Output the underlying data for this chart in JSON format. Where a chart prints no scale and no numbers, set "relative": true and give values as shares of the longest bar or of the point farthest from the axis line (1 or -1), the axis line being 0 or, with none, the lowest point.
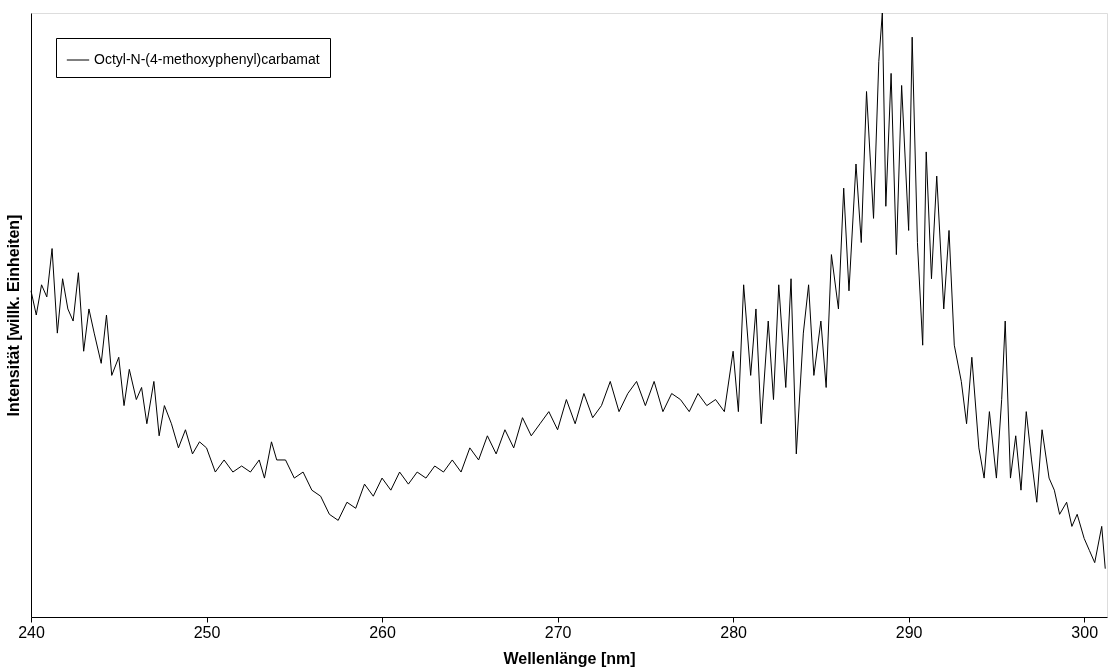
{
  "chart_data": {
    "type": "line",
    "xlabel": "Wellenlänge [nm]",
    "ylabel": "Intensität [willk. Einheiten]",
    "relative": true,
    "xlim": [
      240,
      301.3
    ],
    "xticks": [
      240,
      250,
      260,
      270,
      280,
      290,
      300
    ],
    "grid": false,
    "legend": "top left",
    "marker": "none",
    "line_style": "solid",
    "x": [
      240.0,
      240.3,
      240.6,
      240.9,
      241.2,
      241.5,
      241.8,
      242.1,
      242.4,
      242.7,
      243.0,
      243.3,
      243.6,
      244.0,
      244.3,
      244.6,
      245.0,
      245.3,
      245.6,
      246.0,
      246.3,
      246.6,
      247.0,
      247.3,
      247.6,
      248.0,
      248.4,
      248.8,
      249.2,
      249.6,
      250.0,
      250.5,
      251.0,
      251.5,
      252.0,
      252.5,
      253.0,
      253.3,
      253.7,
      254.0,
      254.5,
      255.0,
      255.5,
      256.0,
      256.5,
      257.0,
      257.5,
      258.0,
      258.5,
      259.0,
      259.5,
      260.0,
      260.5,
      261.0,
      261.5,
      262.0,
      262.5,
      263.0,
      263.5,
      264.0,
      264.5,
      265.0,
      265.5,
      266.0,
      266.5,
      267.0,
      267.5,
      268.0,
      268.5,
      269.0,
      269.5,
      270.0,
      270.5,
      271.0,
      271.5,
      272.0,
      272.5,
      273.0,
      273.5,
      274.0,
      274.5,
      275.0,
      275.5,
      276.0,
      276.5,
      277.0,
      277.5,
      278.0,
      278.5,
      279.0,
      279.5,
      280.0,
      280.3,
      280.6,
      281.0,
      281.3,
      281.6,
      282.0,
      282.3,
      282.6,
      283.0,
      283.3,
      283.6,
      284.0,
      284.3,
      284.6,
      285.0,
      285.3,
      285.6,
      286.0,
      286.3,
      286.6,
      287.0,
      287.3,
      287.6,
      288.0,
      288.3,
      288.5,
      288.7,
      289.0,
      289.3,
      289.6,
      290.0,
      290.2,
      290.5,
      290.8,
      291.0,
      291.3,
      291.6,
      292.0,
      292.3,
      292.6,
      293.0,
      293.3,
      293.6,
      294.0,
      294.3,
      294.6,
      295.0,
      295.3,
      295.5,
      295.8,
      296.1,
      296.4,
      296.7,
      297.0,
      297.3,
      297.6,
      298.0,
      298.3,
      298.6,
      299.0,
      299.3,
      299.6,
      300.0,
      300.3,
      300.6,
      301.0,
      301.2
    ],
    "series": [
      {
        "name": "Octyl-N-(4-methoxyphenyl)carbamat",
        "color": "#000000",
        "values": [
          0.54,
          0.5,
          0.55,
          0.53,
          0.61,
          0.47,
          0.56,
          0.51,
          0.49,
          0.57,
          0.44,
          0.51,
          0.47,
          0.42,
          0.5,
          0.4,
          0.43,
          0.35,
          0.41,
          0.36,
          0.38,
          0.32,
          0.39,
          0.3,
          0.35,
          0.32,
          0.28,
          0.31,
          0.27,
          0.29,
          0.28,
          0.24,
          0.26,
          0.24,
          0.25,
          0.24,
          0.26,
          0.23,
          0.29,
          0.26,
          0.26,
          0.23,
          0.24,
          0.21,
          0.2,
          0.17,
          0.16,
          0.19,
          0.18,
          0.22,
          0.2,
          0.23,
          0.21,
          0.24,
          0.22,
          0.24,
          0.23,
          0.25,
          0.24,
          0.26,
          0.24,
          0.28,
          0.26,
          0.3,
          0.27,
          0.31,
          0.28,
          0.33,
          0.3,
          0.32,
          0.34,
          0.31,
          0.36,
          0.32,
          0.37,
          0.33,
          0.35,
          0.39,
          0.34,
          0.37,
          0.39,
          0.35,
          0.39,
          0.34,
          0.37,
          0.36,
          0.34,
          0.37,
          0.35,
          0.36,
          0.34,
          0.44,
          0.34,
          0.55,
          0.4,
          0.51,
          0.32,
          0.49,
          0.36,
          0.55,
          0.38,
          0.56,
          0.27,
          0.47,
          0.55,
          0.4,
          0.49,
          0.38,
          0.6,
          0.51,
          0.71,
          0.54,
          0.75,
          0.62,
          0.87,
          0.66,
          0.92,
          1.0,
          0.68,
          0.9,
          0.6,
          0.88,
          0.64,
          0.96,
          0.62,
          0.45,
          0.77,
          0.56,
          0.73,
          0.51,
          0.64,
          0.45,
          0.39,
          0.32,
          0.43,
          0.28,
          0.23,
          0.34,
          0.23,
          0.36,
          0.49,
          0.23,
          0.3,
          0.21,
          0.34,
          0.26,
          0.19,
          0.31,
          0.23,
          0.21,
          0.17,
          0.19,
          0.15,
          0.17,
          0.13,
          0.11,
          0.09,
          0.15,
          0.08
        ]
      }
    ]
  }
}
